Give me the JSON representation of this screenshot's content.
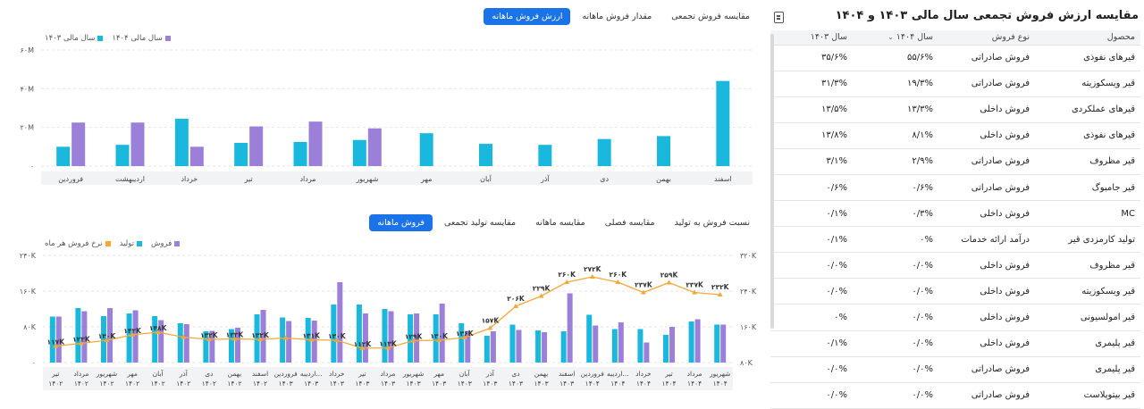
{
  "colors": {
    "cyan": "#1ab8dc",
    "purple": "#9b7fd8",
    "orange": "#f3a93a",
    "blue": "#1a73e8"
  },
  "table_panel": {
    "title": "مقایسه ارزش فروش تجمعی سال مالی ۱۴۰۳ و ۱۴۰۴",
    "export_icon": "export-excel-icon",
    "headers": {
      "product": "محصول",
      "type": "نوع فروش",
      "y1404": "سال ۱۴۰۴",
      "y1403": "سال ۱۴۰۳"
    },
    "rows": [
      {
        "product": "قیرهای نفوذی",
        "type": "فروش صادراتی",
        "y1404": "۵۵/۶%",
        "y1403": "۳۵/۶%"
      },
      {
        "product": "قیر ویسکوزیته",
        "type": "فروش صادراتی",
        "y1404": "۱۹/۳%",
        "y1403": "۳۱/۳%"
      },
      {
        "product": "قیرهای عملکردی",
        "type": "فروش داخلی",
        "y1404": "۱۳/۳%",
        "y1403": "۱۳/۵%"
      },
      {
        "product": "قیرهای نفوذی",
        "type": "فروش داخلی",
        "y1404": "۸/۱%",
        "y1403": "۱۳/۸%"
      },
      {
        "product": "قیر مظروف",
        "type": "فروش صادراتی",
        "y1404": "۲/۹%",
        "y1403": "۳/۱%"
      },
      {
        "product": "قیر جامبوگ",
        "type": "فروش صادراتی",
        "y1404": "۰/۶%",
        "y1403": "۰/۶%"
      },
      {
        "product": "MC",
        "type": "فروش داخلی",
        "y1404": "۰/۳%",
        "y1403": "۰/۱%"
      },
      {
        "product": "تولید کارمزدی قیر",
        "type": "درآمد ارائه خدمات",
        "y1404": "۰%",
        "y1403": "۰/۱%"
      },
      {
        "product": "قیر مظروف",
        "type": "فروش داخلی",
        "y1404": "۰/۰%",
        "y1403": "۰/۰%"
      },
      {
        "product": "قیر ویسکوزیته",
        "type": "فروش داخلی",
        "y1404": "۰/۰%",
        "y1403": "۰/۰%"
      },
      {
        "product": "قیر امولسیونی",
        "type": "فروش داخلی",
        "y1404": "۰/۰%",
        "y1403": "۰%"
      },
      {
        "product": "قیر پلیمری",
        "type": "فروش داخلی",
        "y1404": "۰/۰%",
        "y1403": "۰/۱%"
      },
      {
        "product": "قیر پلیمری",
        "type": "فروش صادراتی",
        "y1404": "۰/۰%",
        "y1403": "۰/۰%"
      },
      {
        "product": "قیر بیتوپلاست",
        "type": "فروش صادراتی",
        "y1404": "۰/۰%",
        "y1403": "۰/۰%"
      }
    ]
  },
  "top_tabs": [
    {
      "label": "ارزش فروش ماهانه",
      "active": true
    },
    {
      "label": "مقدار فروش ماهانه",
      "active": false
    },
    {
      "label": "مقایسه فروش تجمعی",
      "active": false
    }
  ],
  "bottom_tabs": [
    {
      "label": "فروش ماهانه",
      "active": true
    },
    {
      "label": "مقایسه تولید تجمعی",
      "active": false
    },
    {
      "label": "مقایسه ماهانه",
      "active": false
    },
    {
      "label": "مقایسه فصلی",
      "active": false
    },
    {
      "label": "نسبت فروش به تولید",
      "active": false
    }
  ],
  "chart_data": [
    {
      "type": "bar",
      "legend": [
        {
          "name": "سال مالی ۱۴۰۴",
          "color": "#9b7fd8"
        },
        {
          "name": "سال مالی ۱۴۰۳",
          "color": "#1ab8dc"
        }
      ],
      "legend_position": "top-left",
      "yticks": [
        "۰",
        "۲۰M",
        "۴۰M",
        "۶۰M"
      ],
      "ylim": [
        0,
        60
      ],
      "categories": [
        "فروردین",
        "اردیبهشت",
        "خرداد",
        "تیر",
        "مرداد",
        "شهریور",
        "مهر",
        "آبان",
        "آذر",
        "دی",
        "بهمن",
        "اسفند"
      ],
      "series": [
        {
          "name": "سال مالی ۱۴۰۳",
          "values": [
            10,
            11,
            24.5,
            12,
            12.5,
            13.5,
            17,
            11.5,
            11,
            14,
            15.5,
            44
          ]
        },
        {
          "name": "سال مالی ۱۴۰۴",
          "values": [
            22.5,
            22.5,
            10,
            20.5,
            23,
            19.5,
            null,
            null,
            null,
            null,
            null,
            null
          ]
        }
      ],
      "grid": true
    },
    {
      "type": "bar",
      "legend": [
        {
          "name": "فروش",
          "color": "#9b7fd8"
        },
        {
          "name": "تولید",
          "color": "#1ab8dc"
        },
        {
          "name": "نرخ فروش هر ماه",
          "color": "#f3a93a"
        }
      ],
      "legend_position": "top-left",
      "left_yticks": [
        "۰",
        "۸۰K",
        "۱۶۰K",
        "۲۴۰K"
      ],
      "right_yticks": [
        "۸۰K",
        "۱۶۰K",
        "۲۴۰K",
        "۳۲۰K"
      ],
      "left_ylim": [
        0,
        240
      ],
      "right_ylim": [
        80,
        320
      ],
      "categories": [
        [
          "تیر",
          "۱۴۰۲"
        ],
        [
          "مرداد",
          "۱۴۰۲"
        ],
        [
          "شهریور",
          "۱۴۰۲"
        ],
        [
          "مهر",
          "۱۴۰۲"
        ],
        [
          "آبان",
          "۱۴۰۲"
        ],
        [
          "آذر",
          "۱۴۰۲"
        ],
        [
          "دی",
          "۱۴۰۲"
        ],
        [
          "بهمن",
          "۱۴۰۲"
        ],
        [
          "اسفند",
          "۱۴۰۲"
        ],
        [
          "فروردین",
          "۱۴۰۳"
        ],
        [
          "اردیبه...",
          "۱۴۰۳"
        ],
        [
          "خرداد",
          "۱۴۰۳"
        ],
        [
          "تیر",
          "۱۴۰۳"
        ],
        [
          "مرداد",
          "۱۴۰۳"
        ],
        [
          "شهریور",
          "۱۴۰۳"
        ],
        [
          "مهر",
          "۱۴۰۳"
        ],
        [
          "آبان",
          "۱۴۰۳"
        ],
        [
          "آذر",
          "۱۴۰۳"
        ],
        [
          "دی",
          "۱۴۰۳"
        ],
        [
          "بهمن",
          "۱۴۰۳"
        ],
        [
          "اسفند",
          "۱۴۰۳"
        ],
        [
          "فروردین",
          "۱۴۰۴"
        ],
        [
          "اردیبه...",
          "۱۴۰۴"
        ],
        [
          "خرداد",
          "۱۴۰۴"
        ],
        [
          "تیر",
          "۱۴۰۴"
        ],
        [
          "مرداد",
          "۱۴۰۴"
        ],
        [
          "شهریور",
          "۱۴۰۴"
        ]
      ],
      "series": [
        {
          "name": "تولید",
          "axis": "left",
          "values": [
            103,
            122,
            104,
            110,
            104,
            88,
            70,
            75,
            108,
            101,
            100,
            130,
            130,
            120,
            108,
            108,
            88,
            60,
            85,
            72,
            70,
            107,
            75,
            75,
            62,
            92,
            85
          ]
        },
        {
          "name": "فروش",
          "axis": "left",
          "values": [
            103,
            115,
            122,
            117,
            95,
            86,
            71,
            78,
            118,
            93,
            94,
            180,
            110,
            115,
            110,
            132,
            71,
            70,
            73,
            68,
            155,
            83,
            90,
            45,
            80,
            97,
            85
          ]
        },
        {
          "name": "نرخ فروش هر ماه",
          "axis": "right",
          "values": [
            117,
            123,
            130,
            142,
            148,
            137,
            132,
            133,
            132,
            135,
            131,
            130,
            112,
            113,
            129,
            130,
            136,
            157,
            206,
            229,
            260,
            272,
            260,
            237,
            259,
            237,
            232
          ],
          "labels": [
            "۱۱۷K",
            "۱۲۳K",
            "۱۳۰K",
            "۱۴۲K",
            "۱۴۸K",
            "",
            "۱۳۲K",
            "۱۳۳K",
            "۱۳۲K",
            "",
            "۱۳۱K",
            "۱۳۰K",
            "۱۱۲K",
            "۱۱۳K",
            "۱۲۹K",
            "۱۳۰K",
            "۱۳۶K",
            "۱۵۷K",
            "۲۰۶K",
            "۲۲۹K",
            "۲۶۰K",
            "۲۷۲K",
            "۲۶۰K",
            "۲۳۷K",
            "۲۵۹K",
            "۲۳۷K",
            "۲۳۲K"
          ]
        }
      ],
      "grid": true
    }
  ]
}
